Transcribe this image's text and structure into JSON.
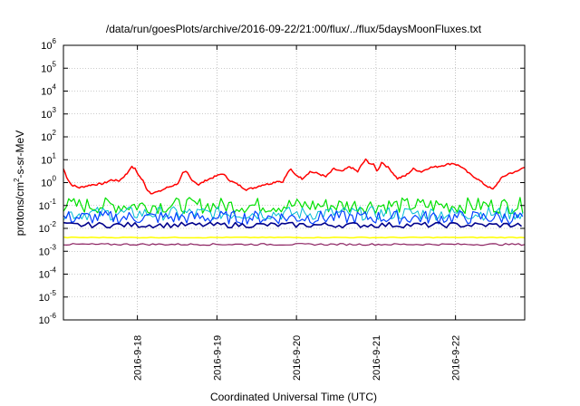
{
  "chart_data": {
    "type": "line",
    "title": "/data/run/goesPlots/archive/2016-09-22/21:00/flux/../flux/5daysMoonFluxes.txt",
    "xlabel": "Coordinated Universal Time (UTC)",
    "ylabel": {
      "base": "protons/cm",
      "sup": "2",
      "rest": "-s-sr-MeV"
    },
    "y_scale": "log",
    "ylim": [
      1e-06,
      1000000.0
    ],
    "y_ticks": [
      {
        "base": "10",
        "exp": "-6",
        "value": 1e-06
      },
      {
        "base": "10",
        "exp": "-5",
        "value": 1e-05
      },
      {
        "base": "10",
        "exp": "-4",
        "value": 0.0001
      },
      {
        "base": "10",
        "exp": "-3",
        "value": 0.001
      },
      {
        "base": "10",
        "exp": "-2",
        "value": 0.01
      },
      {
        "base": "10",
        "exp": "-1",
        "value": 0.1
      },
      {
        "base": "10",
        "exp": "0",
        "value": 1
      },
      {
        "base": "10",
        "exp": "1",
        "value": 10
      },
      {
        "base": "10",
        "exp": "2",
        "value": 100
      },
      {
        "base": "10",
        "exp": "3",
        "value": 1000
      },
      {
        "base": "10",
        "exp": "4",
        "value": 10000
      },
      {
        "base": "10",
        "exp": "5",
        "value": 100000
      },
      {
        "base": "10",
        "exp": "6",
        "value": 1000000
      }
    ],
    "x_range_days": [
      0,
      5.8
    ],
    "x_ticks": [
      {
        "label": "2016-9-18",
        "day": 0.93
      },
      {
        "label": "2016-9-19",
        "day": 1.93
      },
      {
        "label": "2016-9-20",
        "day": 2.93
      },
      {
        "label": "2016-9-21",
        "day": 3.93
      },
      {
        "label": "2016-9-22",
        "day": 4.93
      }
    ],
    "grid": true,
    "legend": "none",
    "series": [
      {
        "color": "#ff0000",
        "width": 1.5,
        "noise": 0.04,
        "x": [
          0,
          0.05,
          0.1,
          0.2,
          0.35,
          0.5,
          0.6,
          0.7,
          0.8,
          0.85,
          0.9,
          0.95,
          1.0,
          1.05,
          1.1,
          1.2,
          1.3,
          1.4,
          1.45,
          1.5,
          1.55,
          1.6,
          1.7,
          1.8,
          1.9,
          2.0,
          2.1,
          2.2,
          2.3,
          2.4,
          2.5,
          2.6,
          2.7,
          2.75,
          2.8,
          2.85,
          2.9,
          3.0,
          3.1,
          3.2,
          3.3,
          3.4,
          3.5,
          3.6,
          3.7,
          3.75,
          3.8,
          3.85,
          3.9,
          3.95,
          4.0,
          4.1,
          4.2,
          4.3,
          4.4,
          4.5,
          4.6,
          4.7,
          4.8,
          4.9,
          5.0,
          5.1,
          5.2,
          5.3,
          5.4,
          5.5,
          5.6,
          5.7,
          5.8
        ],
        "y": [
          4,
          1.5,
          0.8,
          0.6,
          0.8,
          0.9,
          1.3,
          1.2,
          2.5,
          5,
          4,
          2,
          1.2,
          0.5,
          0.35,
          0.4,
          0.6,
          0.8,
          1,
          2.5,
          3,
          1.5,
          0.8,
          1.3,
          1.8,
          2.5,
          1.2,
          0.8,
          0.5,
          0.6,
          0.8,
          0.9,
          1.2,
          1,
          2,
          4,
          2.5,
          1.5,
          3,
          2.5,
          1.8,
          4,
          3,
          5,
          3,
          6,
          10,
          7,
          6,
          3,
          8,
          4,
          1.5,
          2,
          4,
          3,
          4.5,
          5,
          6,
          7,
          5,
          2.5,
          1.5,
          0.8,
          0.5,
          1.5,
          2.5,
          3,
          5
        ]
      },
      {
        "color": "#00e000",
        "width": 1.2,
        "noise": 0.35,
        "period": 0.033,
        "x": [
          0,
          5.8
        ],
        "y": [
          0.1,
          0.1
        ]
      },
      {
        "color": "#00bcd4",
        "width": 1.0,
        "noise": 0.3,
        "period": 0.033,
        "x": [
          0,
          5.8
        ],
        "y": [
          0.045,
          0.045
        ]
      },
      {
        "color": "#0040ff",
        "width": 1.2,
        "noise": 0.3,
        "period": 0.033,
        "x": [
          0,
          5.8
        ],
        "y": [
          0.03,
          0.03
        ]
      },
      {
        "color": "#00008b",
        "width": 1.6,
        "noise": 0.12,
        "period": 0.045,
        "x": [
          0,
          5.8
        ],
        "y": [
          0.014,
          0.014
        ]
      },
      {
        "color": "#ffff00",
        "width": 1.5,
        "noise": 0.02,
        "period": 0.05,
        "x": [
          0,
          5.8
        ],
        "y": [
          0.004,
          0.004
        ]
      },
      {
        "color": "#8b2060",
        "width": 1.2,
        "noise": 0.04,
        "period": 0.04,
        "x": [
          0,
          5.8
        ],
        "y": [
          0.002,
          0.002
        ]
      }
    ]
  }
}
